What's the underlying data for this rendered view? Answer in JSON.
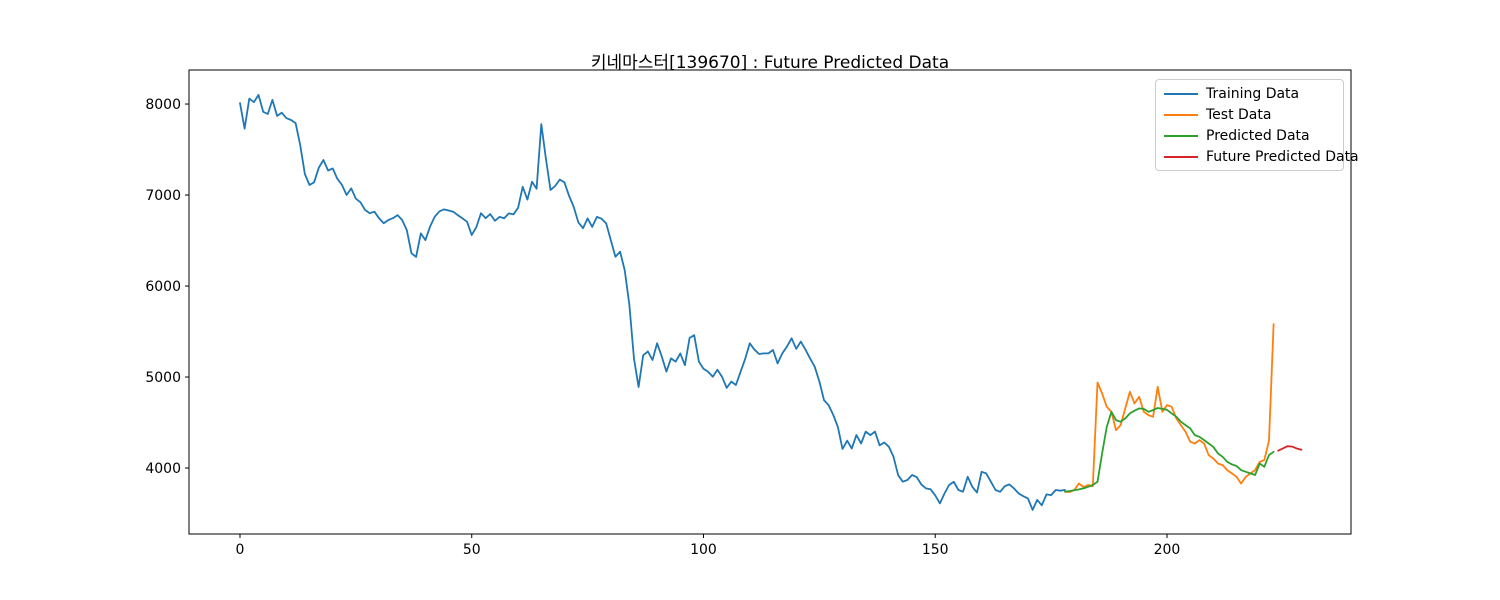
{
  "chart_data": {
    "type": "line",
    "title": "키네마스터[139670] : Future Predicted Data",
    "xlabel": "",
    "ylabel": "",
    "grid": false,
    "legend_position": "upper right",
    "xlim": [
      -11,
      239.7
    ],
    "ylim": [
      3275,
      8374
    ],
    "x_ticks": [
      0,
      50,
      100,
      150,
      200
    ],
    "y_ticks": [
      4000,
      5000,
      6000,
      7000,
      8000
    ],
    "series": [
      {
        "name": "Training Data",
        "color": "#1f77b4",
        "x_start": 0,
        "values": [
          8010,
          7730,
          8060,
          8020,
          8100,
          7915,
          7890,
          8045,
          7870,
          7905,
          7845,
          7825,
          7790,
          7550,
          7230,
          7110,
          7140,
          7300,
          7385,
          7270,
          7293,
          7180,
          7110,
          7000,
          7073,
          6960,
          6920,
          6835,
          6800,
          6817,
          6745,
          6690,
          6725,
          6745,
          6780,
          6725,
          6615,
          6360,
          6320,
          6578,
          6505,
          6651,
          6761,
          6820,
          6842,
          6830,
          6817,
          6780,
          6743,
          6706,
          6560,
          6650,
          6800,
          6745,
          6790,
          6717,
          6760,
          6745,
          6798,
          6787,
          6860,
          7090,
          6950,
          7145,
          7070,
          7780,
          7400,
          7055,
          7100,
          7170,
          7140,
          6990,
          6870,
          6700,
          6635,
          6743,
          6650,
          6760,
          6740,
          6688,
          6505,
          6322,
          6377,
          6175,
          5800,
          5200,
          4890,
          5240,
          5280,
          5187,
          5371,
          5224,
          5060,
          5205,
          5170,
          5260,
          5130,
          5430,
          5460,
          5169,
          5090,
          5059,
          5004,
          5080,
          5004,
          4880,
          4950,
          4912,
          5059,
          5200,
          5371,
          5300,
          5253,
          5260,
          5260,
          5297,
          5150,
          5260,
          5334,
          5426,
          5310,
          5389,
          5300,
          5205,
          5114,
          4950,
          4747,
          4690,
          4583,
          4450,
          4210,
          4300,
          4215,
          4362,
          4270,
          4400,
          4362,
          4400,
          4250,
          4280,
          4233,
          4123,
          3920,
          3850,
          3868,
          3923,
          3900,
          3820,
          3776,
          3766,
          3700,
          3611,
          3720,
          3813,
          3849,
          3758,
          3740,
          3904,
          3794,
          3730,
          3959,
          3941,
          3850,
          3758,
          3739,
          3800,
          3820,
          3776,
          3720,
          3690,
          3666,
          3540,
          3650,
          3590,
          3710,
          3703,
          3758,
          3751,
          3760
        ]
      },
      {
        "name": "Test Data",
        "color": "#ff7f0e",
        "x_start": 178,
        "values": [
          3740,
          3736,
          3758,
          3830,
          3790,
          3813,
          3800,
          4940,
          4820,
          4674,
          4619,
          4417,
          4472,
          4655,
          4838,
          4710,
          4783,
          4618,
          4582,
          4563,
          4893,
          4618,
          4692,
          4674,
          4545,
          4472,
          4398,
          4288,
          4270,
          4307,
          4270,
          4142,
          4105,
          4050,
          4032,
          3977,
          3941,
          3904,
          3830,
          3904,
          3941,
          3977,
          4068,
          4087,
          4300,
          5580
        ]
      },
      {
        "name": "Predicted Data",
        "color": "#2ca02c",
        "x_start": 178,
        "values": [
          3740,
          3748,
          3756,
          3765,
          3776,
          3794,
          3813,
          3849,
          4160,
          4450,
          4618,
          4527,
          4509,
          4545,
          4600,
          4630,
          4655,
          4650,
          4618,
          4637,
          4660,
          4650,
          4640,
          4600,
          4564,
          4509,
          4472,
          4435,
          4362,
          4343,
          4307,
          4270,
          4233,
          4160,
          4123,
          4068,
          4040,
          4022,
          3977,
          3959,
          3941,
          3923,
          4050,
          4014,
          4142,
          4178
        ]
      },
      {
        "name": "Future Predicted Data",
        "color": "#d62728",
        "x_start": 224,
        "values": [
          4190,
          4216,
          4240,
          4235,
          4215,
          4200
        ]
      }
    ]
  }
}
